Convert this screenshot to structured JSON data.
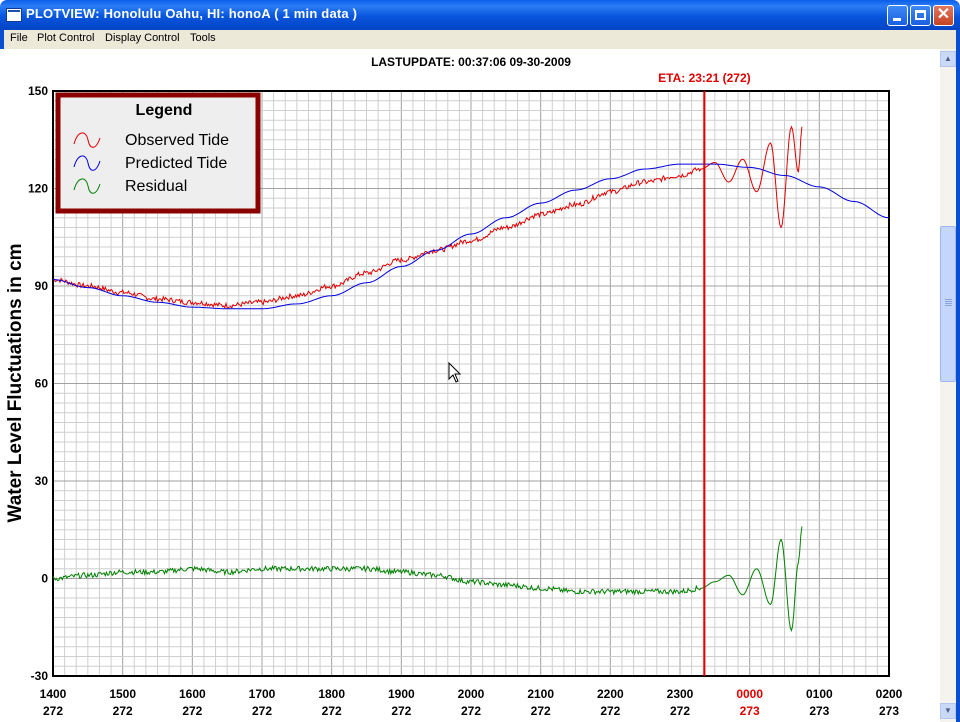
{
  "window": {
    "title": "PLOTVIEW:   Honolulu Oahu, HI: honoA (  1 min data )",
    "controls": {
      "minimize": "minimize",
      "maximize": "maximize",
      "close": "✕"
    }
  },
  "menu": {
    "items": [
      "File",
      "Plot Control",
      "Display Control",
      "Tools"
    ]
  },
  "header": {
    "last_update": "LASTUPDATE: 00:37:06  09-30-2009"
  },
  "colors": {
    "observed": "#e00000",
    "predicted": "#0000e0",
    "residual": "#008000",
    "eta": "#e00000",
    "legend_border": "#8b0000"
  },
  "chart_data": {
    "type": "line",
    "ylabel": "Water Level Fluctuations in cm",
    "ylim": [
      -30,
      150
    ],
    "yticks": [
      -30,
      0,
      30,
      60,
      90,
      120,
      150
    ],
    "xlim": [
      0,
      12
    ],
    "x_unit_note": "hours after 1400 day 272",
    "xticks": [
      {
        "x": 0,
        "time": "1400",
        "day": "272"
      },
      {
        "x": 1,
        "time": "1500",
        "day": "272"
      },
      {
        "x": 2,
        "time": "1600",
        "day": "272"
      },
      {
        "x": 3,
        "time": "1700",
        "day": "272"
      },
      {
        "x": 4,
        "time": "1800",
        "day": "272"
      },
      {
        "x": 5,
        "time": "1900",
        "day": "272"
      },
      {
        "x": 6,
        "time": "2000",
        "day": "272"
      },
      {
        "x": 7,
        "time": "2100",
        "day": "272"
      },
      {
        "x": 8,
        "time": "2200",
        "day": "272"
      },
      {
        "x": 9,
        "time": "2300",
        "day": "272"
      },
      {
        "x": 10,
        "time": "0000",
        "day": "273",
        "highlight": true
      },
      {
        "x": 11,
        "time": "0100",
        "day": "273"
      },
      {
        "x": 12,
        "time": "0200",
        "day": "273"
      }
    ],
    "grid": true,
    "legend": {
      "title": "Legend",
      "placement": "top-left",
      "entries": [
        "Observed Tide",
        "Predicted Tide",
        "Residual"
      ]
    },
    "annotations": [
      {
        "label": "ETA: 23:21 (272)",
        "x": 9.35,
        "color": "#e00000"
      }
    ],
    "series": [
      {
        "name": "Observed Tide",
        "x": [
          0,
          0.5,
          1,
          1.5,
          2,
          2.5,
          3,
          3.5,
          4,
          4.5,
          5,
          5.5,
          6,
          6.5,
          7,
          7.5,
          8,
          8.5,
          9,
          9.3,
          9.5,
          9.7,
          9.9,
          10.1,
          10.3,
          10.45,
          10.6,
          10.7,
          10.75
        ],
        "y": [
          92,
          90,
          88,
          86,
          85,
          84,
          85,
          87,
          90,
          94,
          98,
          101,
          104,
          108,
          112,
          115,
          119,
          122,
          124,
          126,
          128,
          122,
          129,
          119,
          134,
          108,
          139,
          125,
          139
        ]
      },
      {
        "name": "Predicted Tide",
        "x": [
          0,
          0.5,
          1,
          1.5,
          2,
          2.5,
          3,
          3.5,
          4,
          4.5,
          5,
          5.5,
          6,
          6.5,
          7,
          7.5,
          8,
          8.5,
          9,
          9.5,
          10,
          10.5,
          11,
          11.5,
          12
        ],
        "y": [
          92,
          89.5,
          87,
          85,
          83.5,
          83,
          83,
          84.5,
          87,
          91,
          96,
          101,
          106,
          111,
          115.5,
          119.5,
          123,
          126,
          127.5,
          127.5,
          126.5,
          124,
          120.5,
          116,
          111
        ]
      },
      {
        "name": "Residual",
        "x": [
          0,
          0.5,
          1,
          1.5,
          2,
          2.5,
          3,
          3.5,
          4,
          4.5,
          5,
          5.5,
          6,
          6.5,
          7,
          7.5,
          8,
          8.5,
          9,
          9.3,
          9.5,
          9.7,
          9.9,
          10.1,
          10.3,
          10.45,
          10.6,
          10.7,
          10.75
        ],
        "y": [
          0,
          1,
          2,
          2,
          3,
          2,
          3,
          3,
          3,
          3,
          2,
          1,
          -1,
          -2,
          -3,
          -4,
          -4,
          -4,
          -4,
          -3,
          -1,
          1,
          -5,
          3,
          -8,
          12,
          -16,
          5,
          16
        ]
      }
    ]
  }
}
